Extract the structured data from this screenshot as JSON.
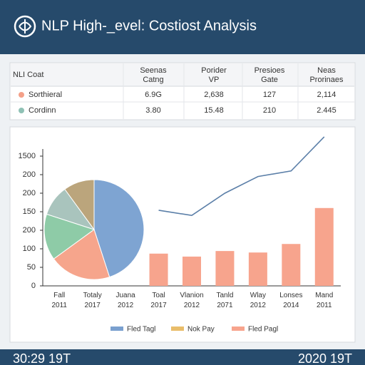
{
  "header": {
    "title": "NLP High-_evel: Costiost Analysis"
  },
  "table": {
    "header": [
      "NLI Coat",
      "Seenas Catng",
      "Porider VP",
      "Presioes Gate",
      "Neas Prorinaes"
    ],
    "rows": [
      [
        "Sorthieral",
        "6.9G",
        "2,638",
        "127",
        "2,114"
      ],
      [
        "Cordinn",
        "3.80",
        "15.48",
        "210",
        "2.445"
      ]
    ],
    "row_colors": [
      "#f4a088",
      "#8fc1b5"
    ]
  },
  "chart_data": [
    {
      "type": "bar",
      "categories": [
        "Fall 2011",
        "Totaly 2017",
        "Juana 2012",
        "Toal 2017",
        "Vlanion 2012",
        "Tanld 2071",
        "Wlay 2012",
        "Lonses 2014",
        "Mand 2011"
      ],
      "series": [
        {
          "name": "Fled Tagl",
          "color": "#5b7fa8",
          "kind": "line",
          "values": [
            null,
            null,
            null,
            204,
            190,
            250,
            295,
            310,
            402
          ]
        },
        {
          "name": "Fled Pagl",
          "color": "#f7a48d",
          "kind": "bar",
          "values": [
            null,
            null,
            null,
            87,
            79,
            94,
            90,
            113,
            210
          ]
        }
      ],
      "legend": [
        {
          "name": "Fled Tagl",
          "color": "#7aa0cf"
        },
        {
          "name": "Nok Pay",
          "color": "#e9bd6a"
        },
        {
          "name": "Fled Pagl",
          "color": "#f7a48d"
        }
      ],
      "ylim": [
        0,
        400
      ],
      "yticks": [
        0,
        50,
        100,
        {
          "value": 150,
          "label": "200"
        },
        {
          "value": 200,
          "label": "150"
        },
        {
          "value": 250,
          "label": "200"
        },
        {
          "value": 300,
          "label": "200"
        },
        {
          "value": 350,
          "label": "1500"
        }
      ]
    },
    {
      "type": "pie",
      "values": [
        45,
        20,
        15,
        10,
        10
      ],
      "colors": [
        "#7ea4d2",
        "#f6a58c",
        "#8ecba7",
        "#a9c4bd",
        "#bba57c"
      ]
    }
  ],
  "footer": {
    "left": "30:29 19T",
    "right": "2020 19T"
  }
}
